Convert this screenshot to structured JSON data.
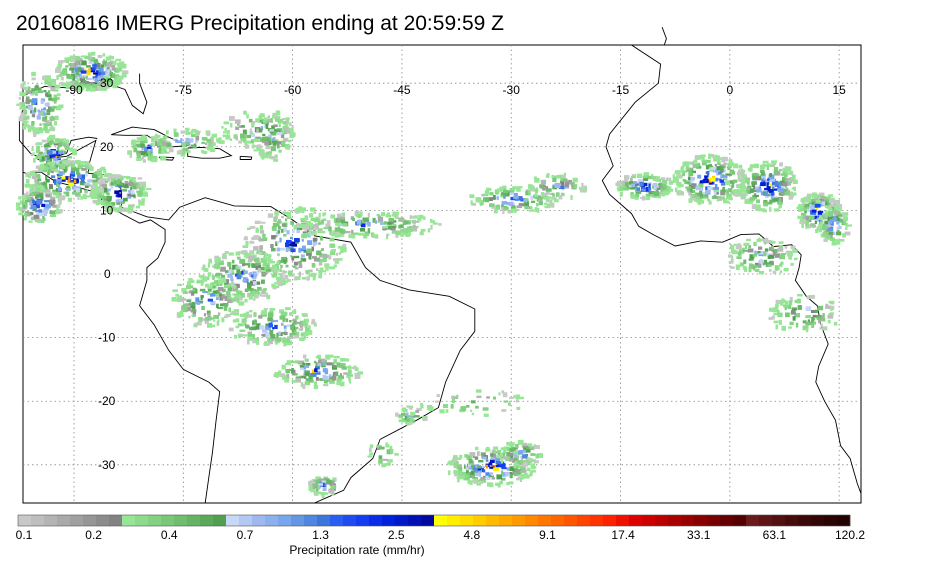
{
  "title": "20160816 IMERG Precipitation ending at 20:59:59 Z",
  "map": {
    "lon_range": [
      -97,
      18
    ],
    "lat_range": [
      -36,
      36
    ],
    "lon_ticks": [
      -90,
      -75,
      -60,
      -45,
      -30,
      -15,
      0,
      15
    ],
    "lon_tick_labels": [
      "-90",
      "-75",
      "-60",
      "-45",
      "-30",
      "-15",
      "0",
      "15"
    ],
    "lat_ticks": [
      30,
      20,
      10,
      0,
      -10,
      -20,
      -30
    ],
    "lat_tick_labels": [
      "30",
      "20",
      "10",
      "0",
      "-10",
      "-20",
      "-30"
    ],
    "grid": "dotted"
  },
  "colorbar": {
    "title": "Precipitation rate (mm/hr)",
    "tick_labels": [
      "0.1",
      "0.2",
      "0.4",
      "0.7",
      "1.3",
      "2.5",
      "4.8",
      "9.1",
      "17.4",
      "33.1",
      "63.1",
      "120.2"
    ],
    "colors": [
      "#c8c8c8",
      "#bebebe",
      "#b4b4b4",
      "#aaaaaa",
      "#a0a0a0",
      "#969696",
      "#8c8c8c",
      "#828282",
      "#96e696",
      "#8cdc8c",
      "#82d282",
      "#78c878",
      "#6ebe6e",
      "#64b464",
      "#5aaa5a",
      "#50a050",
      "#c8d8f8",
      "#b4c8f4",
      "#a0b8f0",
      "#8cb0ee",
      "#78a6ec",
      "#6496e6",
      "#5086e0",
      "#3c76da",
      "#2a5ef0",
      "#1e4cf0",
      "#143cf0",
      "#0a2ce6",
      "#0020dc",
      "#0018c8",
      "#0010b4",
      "#0008a0",
      "#ffff00",
      "#ffee00",
      "#ffdd00",
      "#ffcc00",
      "#ffbb00",
      "#ffaa00",
      "#ff9900",
      "#ff8800",
      "#ff7700",
      "#ff6600",
      "#ff5500",
      "#ff4400",
      "#ff3300",
      "#ff2200",
      "#ee1100",
      "#dd0000",
      "#cc0000",
      "#bb0000",
      "#aa0000",
      "#990000",
      "#880000",
      "#770000",
      "#660000",
      "#550000",
      "#6a1a1a",
      "#5e1414",
      "#521010",
      "#460c0c",
      "#3c0808",
      "#320606",
      "#2a0404",
      "#220202"
    ]
  }
}
